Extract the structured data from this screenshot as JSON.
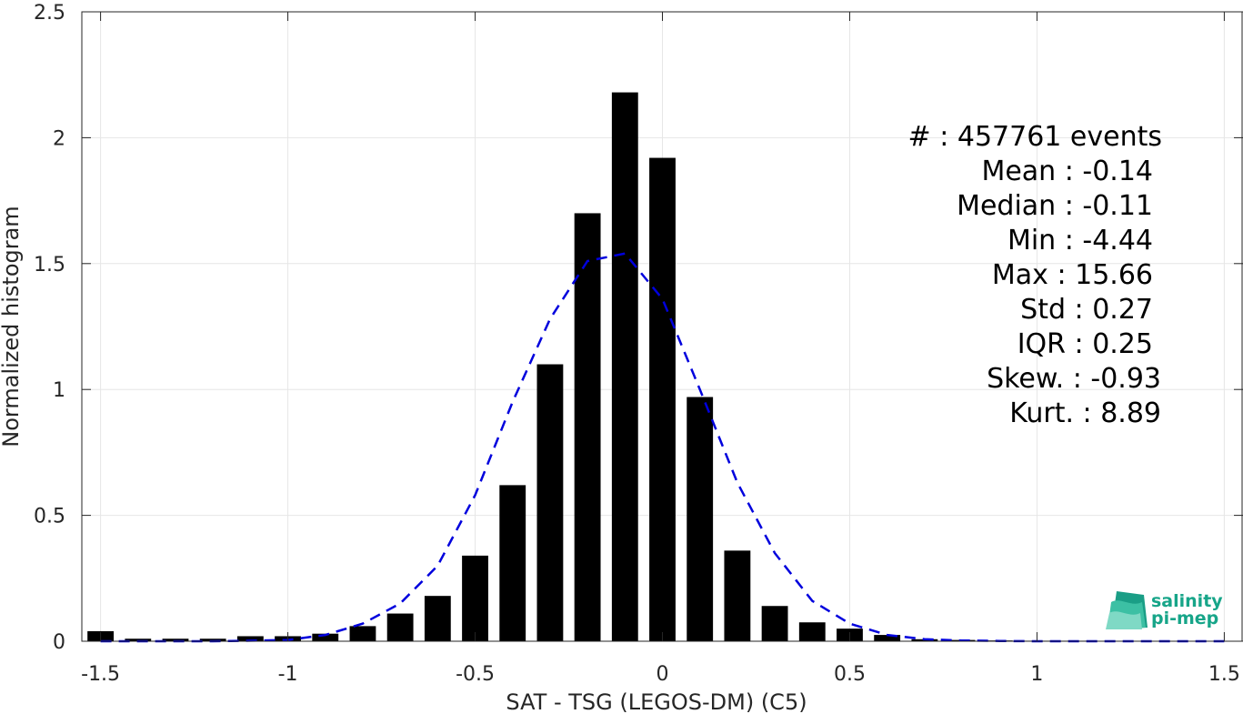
{
  "chart_data": {
    "type": "bar",
    "xlabel": "SAT - TSG (LEGOS-DM) (C5)",
    "ylabel": "Normalized histogram",
    "xlim": [
      -1.55,
      1.55
    ],
    "ylim": [
      0,
      2.5
    ],
    "x_ticks": [
      -1.5,
      -1,
      -0.5,
      0,
      0.5,
      1,
      1.5
    ],
    "x_tick_labels": [
      "-1.5",
      "-1",
      "-0.5",
      "0",
      "0.5",
      "1",
      "1.5"
    ],
    "y_ticks": [
      0,
      0.5,
      1,
      1.5,
      2,
      2.5
    ],
    "y_tick_labels": [
      "0",
      "0.5",
      "1",
      "1.5",
      "2",
      "2.5"
    ],
    "grid": true,
    "bar_width": 0.07,
    "bar_color": "#000000",
    "bins": {
      "x": [
        -1.5,
        -1.4,
        -1.3,
        -1.2,
        -1.1,
        -1.0,
        -0.9,
        -0.8,
        -0.7,
        -0.6,
        -0.5,
        -0.4,
        -0.3,
        -0.2,
        -0.1,
        0.0,
        0.1,
        0.2,
        0.3,
        0.4,
        0.5,
        0.6,
        0.7,
        0.8,
        0.9,
        1.0,
        1.1,
        1.2,
        1.3,
        1.4,
        1.5
      ],
      "values": [
        0.04,
        0.01,
        0.01,
        0.01,
        0.02,
        0.02,
        0.03,
        0.06,
        0.11,
        0.18,
        0.34,
        0.62,
        1.1,
        1.7,
        2.18,
        1.92,
        0.97,
        0.36,
        0.14,
        0.075,
        0.05,
        0.025,
        0.008,
        0.005,
        0.003,
        0.002,
        0.002,
        0.001,
        0.001,
        0.001,
        0.001
      ]
    },
    "fit_curve": {
      "color": "#0000dd",
      "style": "dashed",
      "x": [
        -1.5,
        -1.4,
        -1.3,
        -1.2,
        -1.1,
        -1.0,
        -0.9,
        -0.8,
        -0.7,
        -0.6,
        -0.5,
        -0.4,
        -0.3,
        -0.2,
        -0.1,
        0.0,
        0.1,
        0.2,
        0.3,
        0.4,
        0.5,
        0.6,
        0.7,
        0.8,
        0.9,
        1.0,
        1.1,
        1.2,
        1.3,
        1.4,
        1.5
      ],
      "y": [
        0.0,
        0.0,
        0.0,
        0.0,
        0.002,
        0.005,
        0.025,
        0.07,
        0.15,
        0.3,
        0.58,
        0.95,
        1.28,
        1.51,
        1.54,
        1.36,
        1.0,
        0.63,
        0.35,
        0.16,
        0.07,
        0.025,
        0.008,
        0.003,
        0.001,
        0.0,
        0.0,
        0.0,
        0.0,
        0.0,
        0.0
      ]
    }
  },
  "stats": [
    {
      "label": "#  : 457761 events"
    },
    {
      "label": "Mean : -0.14"
    },
    {
      "label": "Median : -0.11"
    },
    {
      "label": "Min : -4.44"
    },
    {
      "label": "Max : 15.66"
    },
    {
      "label": "Std : 0.27"
    },
    {
      "label": "IQR : 0.25"
    },
    {
      "label": "Skew. : -0.93"
    },
    {
      "label": "Kurt. : 8.89"
    }
  ],
  "logo": {
    "line1": "salinity",
    "line2": "pi-mep",
    "color": "#17a589"
  }
}
